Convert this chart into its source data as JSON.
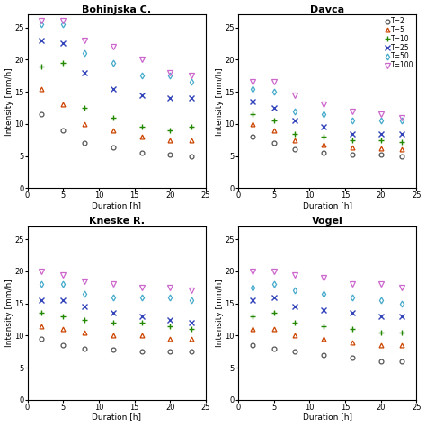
{
  "subplots": [
    {
      "title": "Bohinjska C.",
      "durations": [
        2,
        5,
        8,
        12,
        16,
        20,
        23
      ],
      "series": {
        "T=2": [
          11.5,
          9.0,
          7.0,
          6.3,
          5.5,
          5.2,
          5.0
        ],
        "T=5": [
          15.5,
          13.0,
          10.0,
          9.0,
          8.0,
          7.5,
          7.5
        ],
        "T=10": [
          19.0,
          19.5,
          12.5,
          11.0,
          9.5,
          9.0,
          9.5
        ],
        "T=25": [
          23.0,
          22.5,
          18.0,
          15.5,
          14.5,
          14.0,
          14.0
        ],
        "T=50": [
          25.5,
          25.5,
          21.0,
          19.5,
          17.5,
          17.5,
          16.5
        ],
        "T=100": [
          26.0,
          26.0,
          23.0,
          22.0,
          20.0,
          18.0,
          17.5
        ]
      }
    },
    {
      "title": "Davca",
      "durations": [
        2,
        5,
        8,
        12,
        16,
        20,
        23
      ],
      "series": {
        "T=2": [
          8.0,
          7.0,
          6.0,
          5.5,
          5.2,
          5.2,
          5.0
        ],
        "T=5": [
          10.0,
          9.0,
          7.5,
          6.8,
          6.3,
          6.2,
          6.0
        ],
        "T=10": [
          11.5,
          10.5,
          8.5,
          8.0,
          7.5,
          7.5,
          7.2
        ],
        "T=25": [
          13.5,
          12.5,
          10.5,
          9.5,
          8.5,
          8.5,
          8.5
        ],
        "T=50": [
          15.5,
          15.0,
          12.0,
          11.5,
          10.5,
          10.5,
          10.5
        ],
        "T=100": [
          16.5,
          16.5,
          14.5,
          13.0,
          12.0,
          11.5,
          11.0
        ]
      }
    },
    {
      "title": "Kneske R.",
      "durations": [
        2,
        5,
        8,
        12,
        16,
        20,
        23
      ],
      "series": {
        "T=2": [
          9.5,
          8.5,
          8.0,
          7.8,
          7.5,
          7.5,
          7.5
        ],
        "T=5": [
          11.5,
          11.0,
          10.5,
          10.0,
          10.0,
          9.5,
          9.5
        ],
        "T=10": [
          13.5,
          13.0,
          12.5,
          12.0,
          12.0,
          11.5,
          11.0
        ],
        "T=25": [
          15.5,
          15.5,
          14.5,
          13.5,
          13.0,
          12.5,
          12.0
        ],
        "T=50": [
          18.0,
          18.0,
          16.5,
          16.0,
          16.0,
          16.0,
          15.5
        ],
        "T=100": [
          20.0,
          19.5,
          18.5,
          18.0,
          17.5,
          17.5,
          17.0
        ]
      }
    },
    {
      "title": "Vogel",
      "durations": [
        2,
        5,
        8,
        12,
        16,
        20,
        23
      ],
      "series": {
        "T=2": [
          8.5,
          8.0,
          7.5,
          7.0,
          6.5,
          6.0,
          6.0
        ],
        "T=5": [
          11.0,
          11.0,
          10.0,
          9.5,
          9.0,
          8.5,
          8.5
        ],
        "T=10": [
          13.0,
          13.5,
          12.0,
          11.5,
          11.0,
          10.5,
          10.5
        ],
        "T=25": [
          15.5,
          16.0,
          14.5,
          14.0,
          13.5,
          13.0,
          13.0
        ],
        "T=50": [
          17.5,
          18.0,
          17.0,
          16.5,
          16.0,
          15.5,
          15.0
        ],
        "T=100": [
          20.0,
          20.0,
          19.5,
          19.0,
          18.0,
          18.0,
          17.5
        ]
      }
    }
  ],
  "series_styles": {
    "T=2": {
      "color": "#555555",
      "marker": "o",
      "markersize": 3.5,
      "label": "T=2",
      "hollow": true
    },
    "T=5": {
      "color": "#cc4400",
      "marker": "^",
      "markersize": 3.5,
      "label": "T=5",
      "hollow": true
    },
    "T=10": {
      "color": "#228800",
      "marker": "+",
      "markersize": 4.5,
      "label": "T=10",
      "hollow": false
    },
    "T=25": {
      "color": "#3344bb",
      "marker": "x",
      "markersize": 4.0,
      "label": "T=25",
      "hollow": false
    },
    "T=50": {
      "color": "#44aacc",
      "marker": "d",
      "markersize": 3.5,
      "label": "T=50",
      "hollow": true
    },
    "T=100": {
      "color": "#cc66cc",
      "marker": "v",
      "markersize": 4.0,
      "label": "T=100",
      "hollow": true
    }
  },
  "xlim": [
    0,
    25
  ],
  "ylim": [
    0,
    27
  ],
  "xticks": [
    0,
    5,
    10,
    15,
    20,
    25
  ],
  "yticks": [
    0,
    5,
    10,
    15,
    20,
    25
  ],
  "xlabel": "Duration [h]",
  "ylabel": "Intensity [mm/h]",
  "legend_subplot_idx": 1,
  "background_color": "#ffffff",
  "tick_fontsize": 6,
  "label_fontsize": 6.5,
  "title_fontsize": 8
}
